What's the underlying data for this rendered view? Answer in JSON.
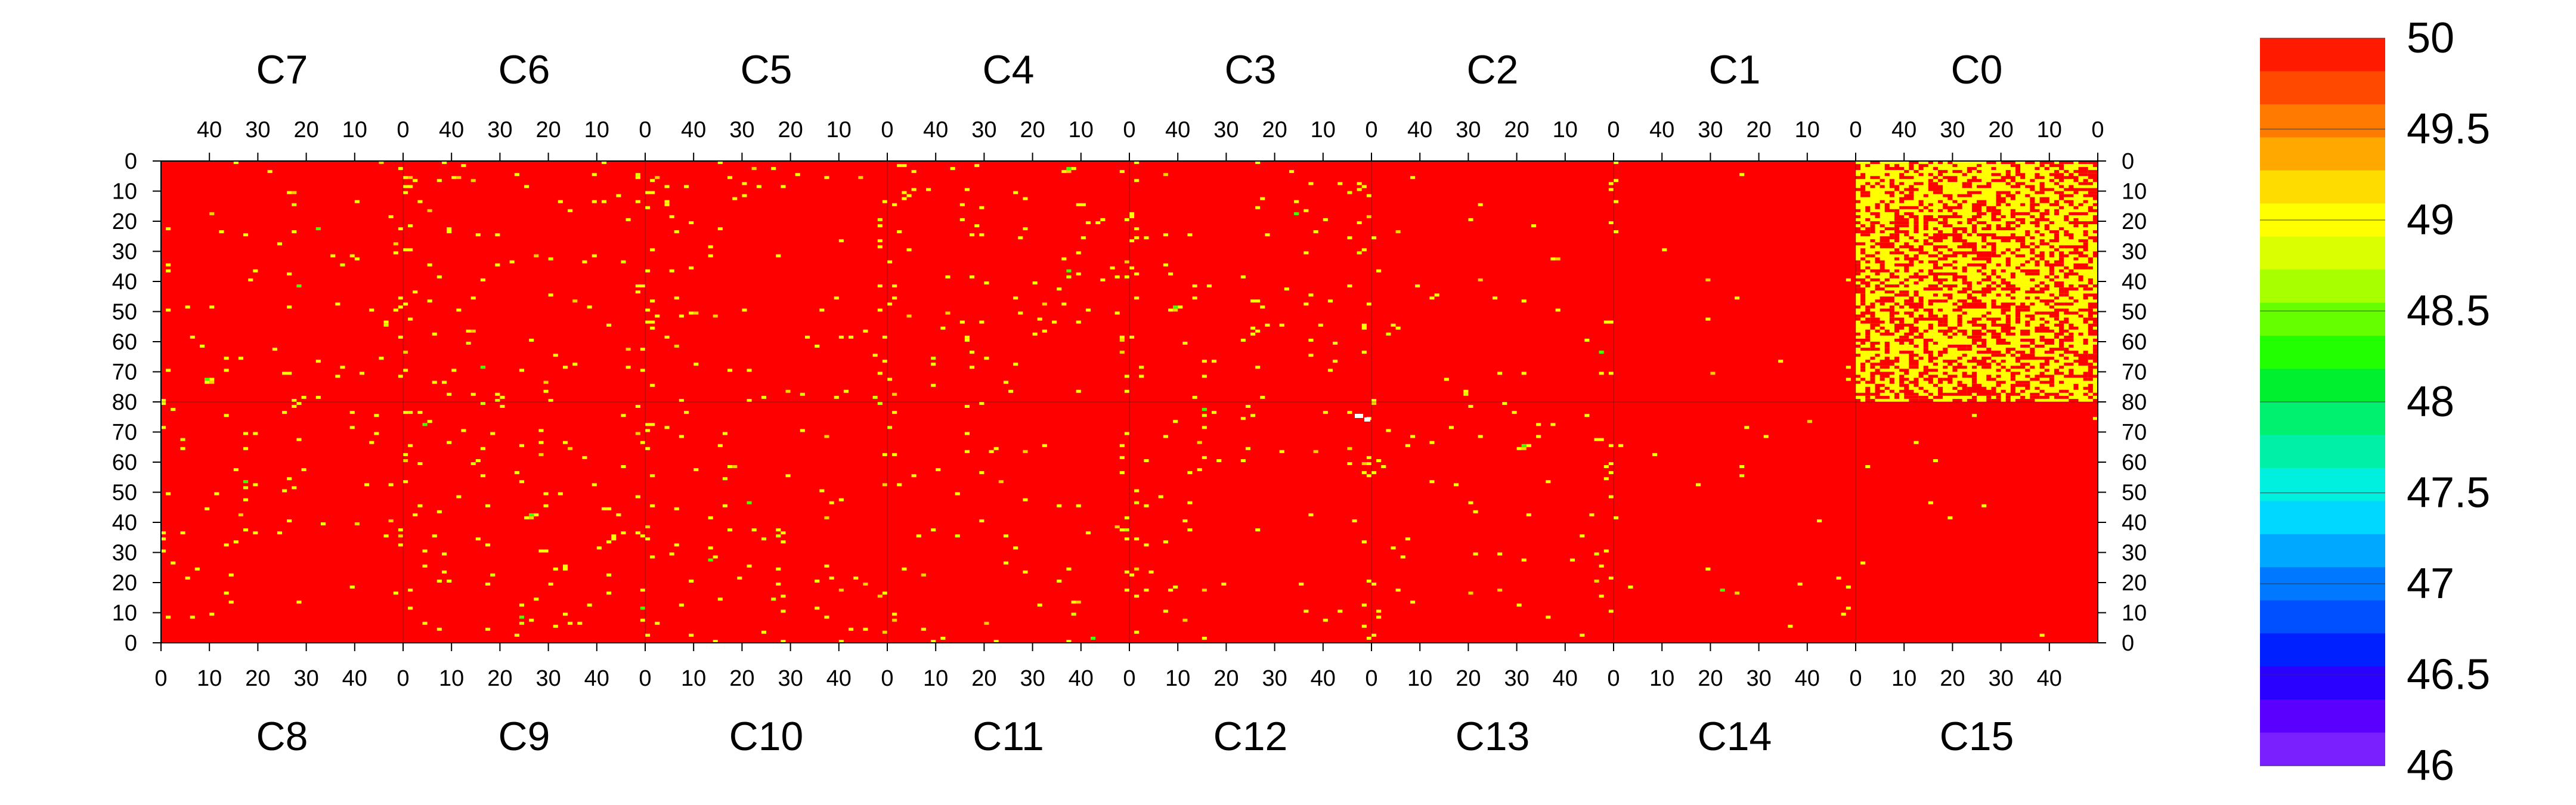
{
  "chart_data": {
    "type": "heatmap",
    "title": "",
    "chip_columns": 50,
    "chip_rows": 80,
    "top_chips": [
      "C7",
      "C6",
      "C5",
      "C4",
      "C3",
      "C2",
      "C1",
      "C0"
    ],
    "bottom_chips": [
      "C8",
      "C9",
      "C10",
      "C11",
      "C12",
      "C13",
      "C14",
      "C15"
    ],
    "top_column_ticks": [
      "40",
      "30",
      "20",
      "10",
      "0"
    ],
    "bottom_column_ticks": [
      "0",
      "10",
      "20",
      "30",
      "40"
    ],
    "top_row_ticks": [
      "0",
      "10",
      "20",
      "30",
      "40",
      "50",
      "60",
      "70",
      "80"
    ],
    "bottom_row_ticks": [
      "70",
      "60",
      "50",
      "40",
      "30",
      "20",
      "10",
      "0"
    ],
    "colorbar": {
      "min": 46,
      "max": 50,
      "tick_labels": [
        "50",
        "49.5",
        "49",
        "48.5",
        "48",
        "47.5",
        "47",
        "46.5",
        "46"
      ],
      "colors": [
        "#ff1a00",
        "#ff4800",
        "#ff7a00",
        "#ffa800",
        "#ffdc00",
        "#ffff00",
        "#d9ff00",
        "#a8ff00",
        "#66ff00",
        "#22ff00",
        "#00f030",
        "#00f070",
        "#00f0a8",
        "#00f0e0",
        "#00d8ff",
        "#00a8ff",
        "#0078ff",
        "#0050ff",
        "#0020ff",
        "#2a00ff",
        "#5a00ff",
        "#7a20ff"
      ]
    },
    "base_value": 50,
    "dominant_color": "#ff0000",
    "deviation_colors": [
      "#ffff00",
      "#ffd000",
      "#d8ff00",
      "#44ff00"
    ],
    "hot_chip": {
      "chip": "C0",
      "description_value_mix": "most pixels yellow (~49), remainder red (50)"
    },
    "defect_marker_color": "#ffffff"
  }
}
